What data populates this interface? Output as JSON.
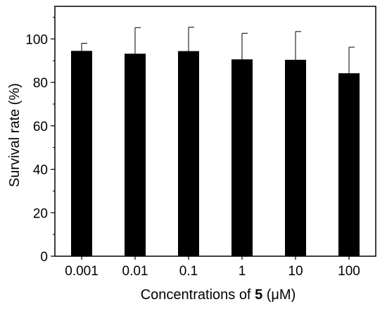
{
  "chart_data": {
    "type": "bar",
    "categories": [
      "0.001",
      "0.01",
      "0.1",
      "1",
      "10",
      "100"
    ],
    "values": [
      94.5,
      93.2,
      94.4,
      90.6,
      90.4,
      84.2
    ],
    "errors": [
      3.5,
      12.0,
      11.0,
      12.0,
      13.0,
      12.0
    ],
    "xlabel": {
      "prefix": "Concentrations of ",
      "bold": "5",
      "suffix": " (μM)"
    },
    "ylabel": "Survival rate (%)",
    "ylim": [
      0,
      115
    ],
    "yticks": [
      0,
      20,
      40,
      60,
      80,
      100
    ],
    "grid": false,
    "bar_color": "#000000"
  }
}
